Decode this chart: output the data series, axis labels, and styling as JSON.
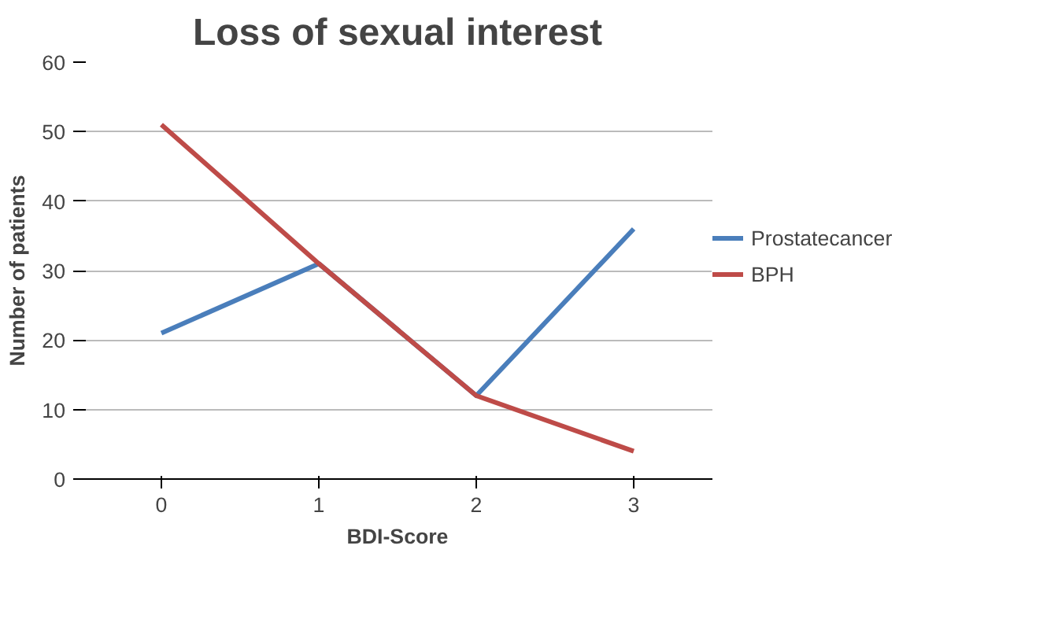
{
  "chart_data": {
    "type": "line",
    "title": "Loss of sexual interest",
    "xlabel": "BDI-Score",
    "ylabel": "Number of patients",
    "categories": [
      "0",
      "1",
      "2",
      "3"
    ],
    "series": [
      {
        "name": "Prostatecancer",
        "color": "#4a7ebb",
        "values": [
          21,
          31,
          12,
          36
        ]
      },
      {
        "name": "BPH",
        "color": "#be4b48",
        "values": [
          51,
          31,
          12,
          4
        ]
      }
    ],
    "ylim": [
      0,
      60
    ],
    "yticks": [
      0,
      10,
      20,
      30,
      40,
      50,
      60
    ],
    "grid": "y",
    "legend": "right",
    "marker": "none",
    "line_style": "solid"
  }
}
